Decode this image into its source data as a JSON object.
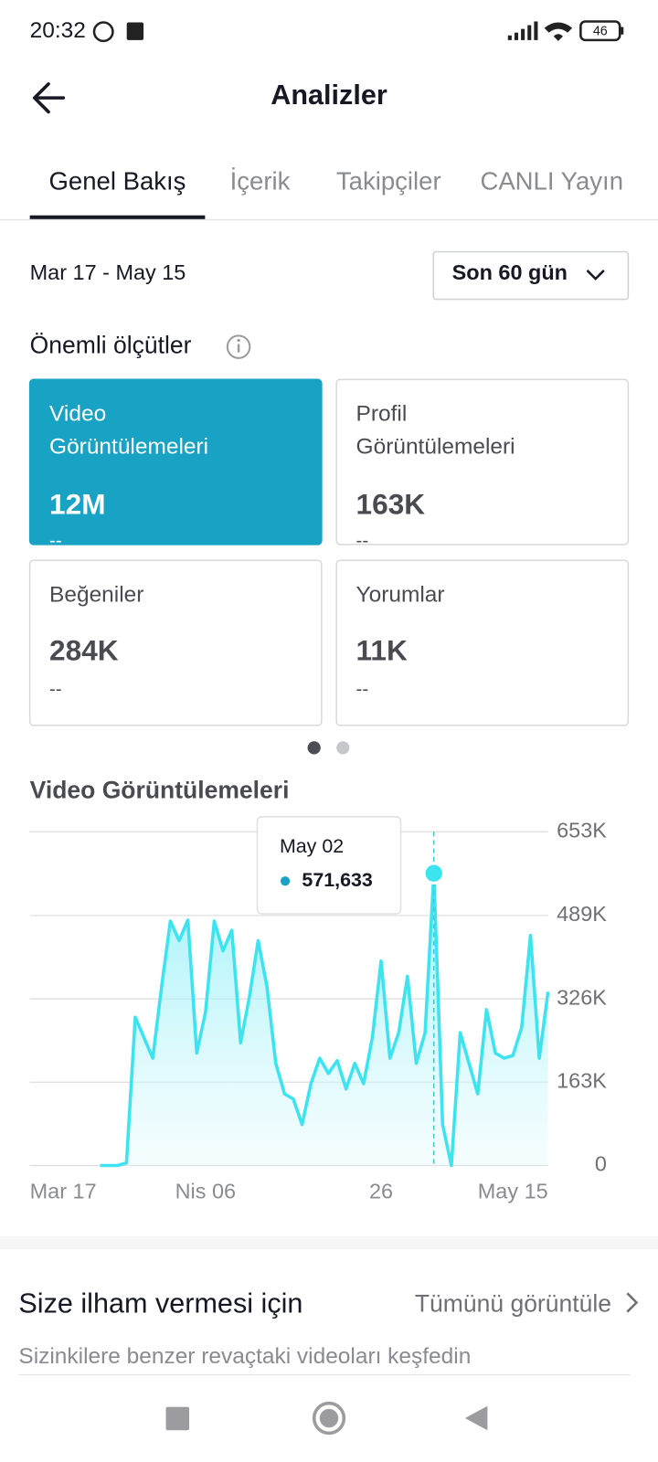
{
  "status_bar": {
    "time": "20:32",
    "battery": "46"
  },
  "header": {
    "title": "Analizler"
  },
  "tabs": [
    "Genel Bakış",
    "İçerik",
    "Takipçiler",
    "CANLI Yayın"
  ],
  "date_range": "Mar 17 - May 15",
  "period_select": "Son 60 gün",
  "metrics_title": "Önemli ölçütler",
  "metrics": [
    {
      "label": [
        "Video",
        "Görüntülemeleri"
      ],
      "value": "12M",
      "change": "--"
    },
    {
      "label": [
        "Profil",
        "Görüntülemeleri"
      ],
      "value": "163K",
      "change": "--"
    },
    {
      "label": [
        "Beğeniler"
      ],
      "value": "284K",
      "change": "--"
    },
    {
      "label": [
        "Yorumlar"
      ],
      "value": "11K",
      "change": "--"
    }
  ],
  "chart_data": {
    "type": "area",
    "title": "Video Görüntülemeleri",
    "categories": [
      "Mar 17",
      null,
      null,
      null,
      null,
      null,
      null,
      null,
      null,
      null,
      null,
      null,
      null,
      null,
      null,
      null,
      null,
      null,
      null,
      null,
      "Nis 06",
      null,
      null,
      null,
      null,
      null,
      null,
      null,
      null,
      null,
      null,
      null,
      null,
      null,
      null,
      null,
      null,
      null,
      null,
      null,
      "26",
      null,
      null,
      null,
      null,
      null,
      null,
      null,
      null,
      null,
      null,
      null,
      null,
      null,
      null,
      null,
      null,
      null,
      null,
      "May 15"
    ],
    "series": [
      {
        "name": "Video Görüntülemeleri",
        "color": "#3ee3f0",
        "values": [
          null,
          null,
          null,
          null,
          null,
          null,
          null,
          null,
          0,
          0,
          0,
          5000,
          290000,
          250000,
          210000,
          350000,
          478000,
          440000,
          480000,
          220000,
          300000,
          478000,
          420000,
          460000,
          240000,
          330000,
          440000,
          350000,
          200000,
          140000,
          130000,
          80000,
          160000,
          210000,
          180000,
          205000,
          150000,
          200000,
          160000,
          250000,
          400000,
          210000,
          260000,
          370000,
          200000,
          260000,
          571633,
          80000,
          0,
          260000,
          200000,
          140000,
          305000,
          220000,
          210000,
          215000,
          270000,
          450000,
          210000,
          340000
        ]
      }
    ],
    "value_labels": [
      null,
      null,
      null,
      null,
      null,
      null,
      null,
      null,
      null,
      null,
      null,
      null,
      null,
      null,
      null,
      null,
      null,
      null,
      null,
      null,
      null,
      null,
      null,
      null,
      null,
      null,
      null,
      null,
      null,
      null,
      null,
      null,
      null,
      null,
      null,
      null,
      null,
      null,
      null,
      null,
      null,
      null,
      null,
      null,
      null,
      null,
      "571,633",
      null,
      null,
      null,
      null,
      null,
      null,
      null,
      null,
      null,
      null,
      null,
      null,
      null
    ],
    "tooltip": {
      "title": "May 02"
    },
    "ylim": [
      0,
      653000
    ],
    "yticks": [
      0,
      {
        "value": 163000,
        "label": "163K"
      },
      {
        "value": 326000,
        "label": "326K"
      },
      {
        "value": 489000,
        "label": "489K"
      },
      {
        "value": 653000,
        "label": "653K"
      }
    ],
    "grid": true
  },
  "inspiration": {
    "title": "Size ilham vermesi için",
    "link": "Tümünü görüntüle",
    "subtitle": "Sizinkilere benzer revaçtaki videoları keşfedin"
  }
}
